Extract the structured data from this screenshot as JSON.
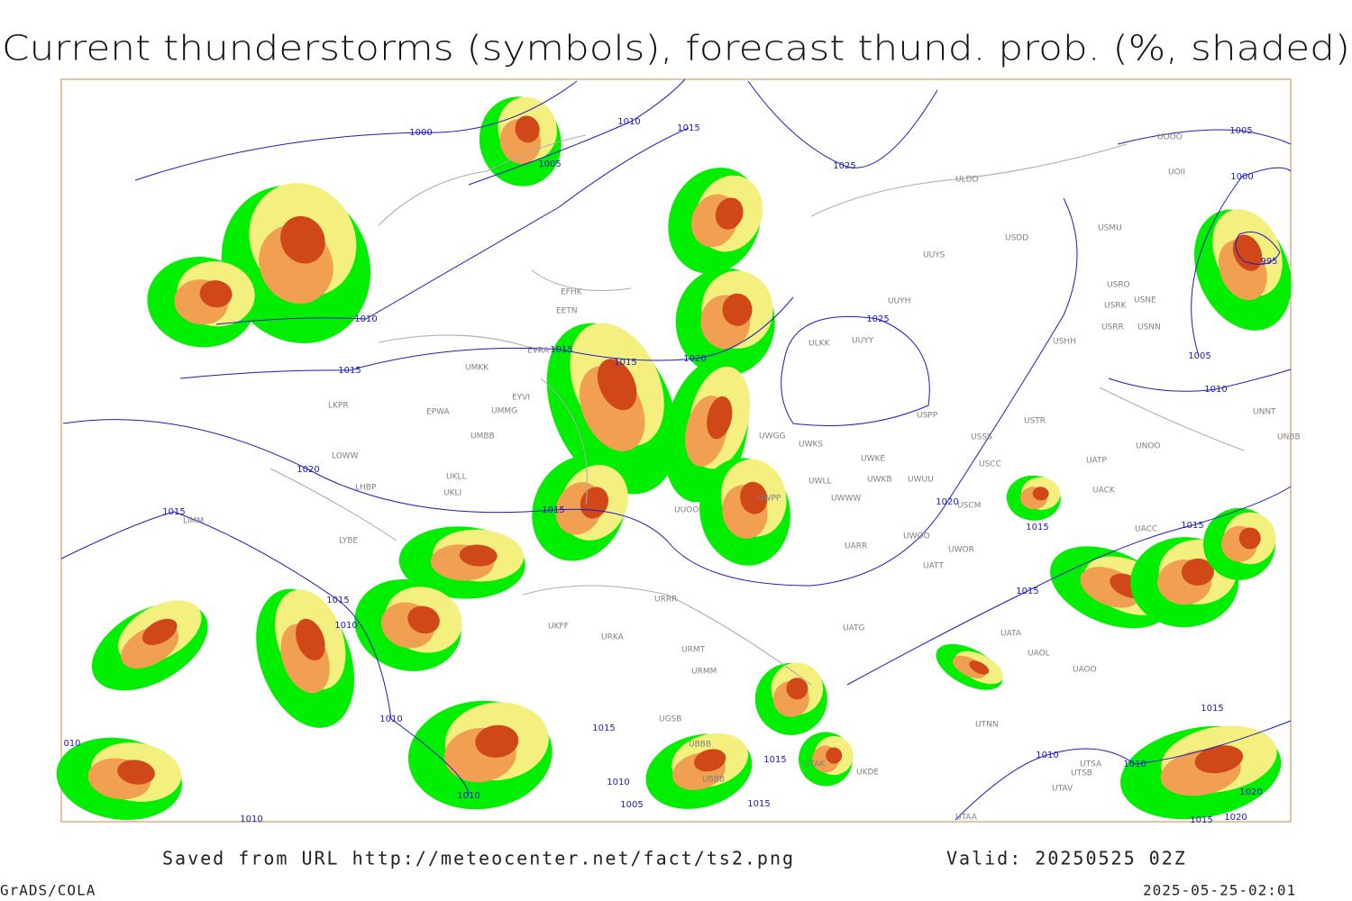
{
  "header": {
    "title": "Current thunderstorms (symbols), forecast thund. prob. (%, shaded)"
  },
  "isobar_labels": [
    "1000",
    "1010",
    "1015",
    "1005",
    "1025",
    "1010",
    "1015",
    "1015",
    "1015",
    "1020",
    "1025",
    "1020",
    "1015",
    "1015",
    "1015",
    "1010",
    "1010",
    "1015",
    "1010",
    "1010",
    "1005",
    "1015",
    "1015",
    "1010",
    "1015",
    "1015",
    "1020",
    "1015",
    "1000",
    "1005",
    "995",
    "1005",
    "1010",
    "1015",
    "1010",
    "1020",
    "1015",
    "1020",
    "1010",
    "010"
  ],
  "station_labels": [
    "ULDD",
    "USDD",
    "USMU",
    "UUYS",
    "UOOO",
    "UOII",
    "USRO",
    "USRK",
    "USNE",
    "USRR",
    "USNN",
    "UUYH",
    "UUYY",
    "ULKK",
    "USHH",
    "USPP",
    "USTR",
    "USSS",
    "USCC",
    "UWKS",
    "UWGG",
    "UWKE",
    "UWKB",
    "UWUU",
    "UWLL",
    "UWWW",
    "UWPP",
    "USCM",
    "UNOO",
    "UATP",
    "UACK",
    "UACC",
    "UNNT",
    "UNBB",
    "UWOO",
    "UWOR",
    "UARR",
    "UATT",
    "UATG",
    "UATA",
    "UAOL",
    "UAOO",
    "UTNN",
    "UTSA",
    "UTSB",
    "UTAV",
    "UTAA",
    "EFHK",
    "EETN",
    "EVRA",
    "UMKK",
    "EYVI",
    "UMMG",
    "EPWA",
    "LKPR",
    "UMBB",
    "LOWW",
    "UKLL",
    "UKLI",
    "LHBP",
    "LIMM",
    "LYBE",
    "UUOO",
    "URRR",
    "UKFF",
    "URKA",
    "URMT",
    "URMM",
    "UGSB",
    "UBBB",
    "UBBB",
    "UTAK",
    "UKDE"
  ],
  "footer": {
    "source": "Saved from URL http://meteocenter.net/fact/ts2.png",
    "valid": "Valid: 20250525 02Z",
    "software": "GrADS/COLA",
    "timestamp": "2025-05-25-02:01"
  }
}
